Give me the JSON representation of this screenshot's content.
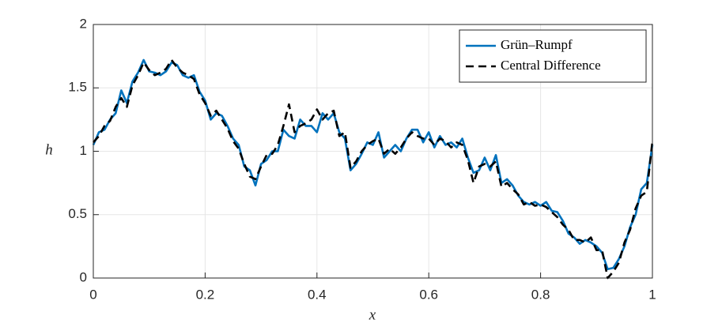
{
  "chart_data": {
    "type": "line",
    "x_label": "x",
    "y_label": "h",
    "x": [
      0,
      0.01,
      0.02,
      0.03,
      0.04,
      0.05,
      0.06,
      0.07,
      0.08,
      0.09,
      0.1,
      0.11,
      0.12,
      0.13,
      0.14,
      0.15,
      0.16,
      0.17,
      0.18,
      0.19,
      0.2,
      0.21,
      0.22,
      0.23,
      0.24,
      0.25,
      0.26,
      0.27,
      0.28,
      0.29,
      0.3,
      0.31,
      0.32,
      0.33,
      0.34,
      0.35,
      0.36,
      0.37,
      0.38,
      0.39,
      0.4,
      0.41,
      0.42,
      0.43,
      0.44,
      0.45,
      0.46,
      0.47,
      0.48,
      0.49,
      0.5,
      0.51,
      0.52,
      0.53,
      0.54,
      0.55,
      0.56,
      0.57,
      0.58,
      0.59,
      0.6,
      0.61,
      0.62,
      0.63,
      0.64,
      0.65,
      0.66,
      0.67,
      0.68,
      0.69,
      0.7,
      0.71,
      0.72,
      0.73,
      0.74,
      0.75,
      0.76,
      0.77,
      0.78,
      0.79,
      0.8,
      0.81,
      0.82,
      0.83,
      0.84,
      0.85,
      0.86,
      0.87,
      0.88,
      0.89,
      0.9,
      0.91,
      0.92,
      0.93,
      0.94,
      0.95,
      0.96,
      0.97,
      0.98,
      0.99,
      1
    ],
    "series": [
      {
        "name": "Grün–Rumpf",
        "color": "#0072bd",
        "dash": false,
        "values": [
          1.05,
          1.15,
          1.17,
          1.25,
          1.3,
          1.48,
          1.38,
          1.55,
          1.62,
          1.72,
          1.63,
          1.62,
          1.6,
          1.63,
          1.7,
          1.68,
          1.6,
          1.58,
          1.6,
          1.47,
          1.4,
          1.25,
          1.3,
          1.28,
          1.2,
          1.1,
          1.05,
          0.88,
          0.85,
          0.73,
          0.9,
          0.93,
          1.0,
          1.0,
          1.17,
          1.12,
          1.1,
          1.25,
          1.2,
          1.2,
          1.15,
          1.3,
          1.25,
          1.3,
          1.15,
          1.1,
          0.85,
          0.9,
          0.98,
          1.07,
          1.05,
          1.15,
          0.95,
          1.0,
          1.05,
          1.0,
          1.1,
          1.17,
          1.17,
          1.07,
          1.15,
          1.03,
          1.12,
          1.05,
          1.07,
          1.03,
          1.1,
          0.95,
          0.83,
          0.85,
          0.95,
          0.85,
          0.97,
          0.75,
          0.78,
          0.73,
          0.65,
          0.6,
          0.58,
          0.6,
          0.57,
          0.6,
          0.53,
          0.52,
          0.45,
          0.35,
          0.32,
          0.27,
          0.3,
          0.28,
          0.25,
          0.2,
          0.07,
          0.08,
          0.15,
          0.25,
          0.4,
          0.5,
          0.7,
          0.75,
          1.05
        ]
      },
      {
        "name": "Central Difference",
        "color": "#000000",
        "dash": true,
        "values": [
          1.07,
          1.12,
          1.2,
          1.24,
          1.35,
          1.42,
          1.35,
          1.52,
          1.6,
          1.7,
          1.64,
          1.6,
          1.62,
          1.65,
          1.72,
          1.66,
          1.62,
          1.6,
          1.57,
          1.45,
          1.38,
          1.28,
          1.32,
          1.25,
          1.18,
          1.08,
          1.02,
          0.9,
          0.8,
          0.78,
          0.88,
          0.97,
          0.98,
          1.05,
          1.2,
          1.37,
          1.15,
          1.2,
          1.22,
          1.25,
          1.33,
          1.25,
          1.3,
          1.32,
          1.12,
          1.15,
          0.87,
          0.92,
          1.0,
          1.05,
          1.08,
          1.1,
          0.98,
          1.02,
          0.98,
          1.03,
          1.1,
          1.15,
          1.12,
          1.1,
          1.1,
          1.05,
          1.1,
          1.08,
          1.03,
          1.07,
          1.05,
          0.93,
          0.75,
          0.88,
          0.9,
          0.88,
          0.92,
          0.72,
          0.75,
          0.7,
          0.66,
          0.58,
          0.6,
          0.57,
          0.58,
          0.56,
          0.52,
          0.48,
          0.42,
          0.38,
          0.3,
          0.3,
          0.28,
          0.32,
          0.22,
          0.22,
          0.0,
          0.05,
          0.12,
          0.28,
          0.38,
          0.55,
          0.65,
          0.68,
          1.08
        ]
      }
    ],
    "xlim": [
      0,
      1
    ],
    "ylim": [
      0,
      2
    ],
    "xticks": [
      0,
      0.2,
      0.4,
      0.6,
      0.8,
      1
    ],
    "yticks": [
      0,
      0.5,
      1,
      1.5,
      2
    ],
    "grid": true,
    "legend": "top-right"
  }
}
